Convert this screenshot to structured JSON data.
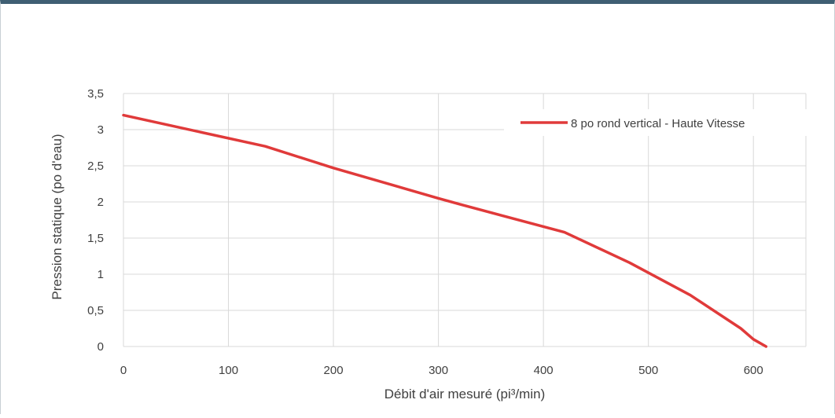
{
  "chart_data": {
    "type": "line",
    "title": "",
    "xlabel": "Débit d'air mesuré (pi³/min)",
    "ylabel": "Pression statique (po d'eau)",
    "xlim": [
      0,
      650
    ],
    "ylim": [
      0,
      3.5
    ],
    "x_ticks": [
      0,
      100,
      200,
      300,
      400,
      500,
      600
    ],
    "x_tick_labels": [
      "0",
      "100",
      "200",
      "300",
      "400",
      "500",
      "600"
    ],
    "y_ticks": [
      0,
      0.5,
      1,
      1.5,
      2,
      2.5,
      3,
      3.5
    ],
    "y_tick_labels": [
      "0",
      "0,5",
      "1",
      "1,5",
      "2",
      "2,5",
      "3",
      "3,5"
    ],
    "grid": true,
    "legend_position": "top-right",
    "series": [
      {
        "name": "8 po rond vertical - Haute Vitesse",
        "color": "#e03a3a",
        "points": [
          [
            0,
            3.2
          ],
          [
            135,
            2.77
          ],
          [
            200,
            2.47
          ],
          [
            300,
            2.05
          ],
          [
            320,
            1.97
          ],
          [
            420,
            1.58
          ],
          [
            482,
            1.16
          ],
          [
            540,
            0.71
          ],
          [
            588,
            0.25
          ],
          [
            600,
            0.1
          ],
          [
            612,
            0.0
          ]
        ]
      }
    ]
  }
}
